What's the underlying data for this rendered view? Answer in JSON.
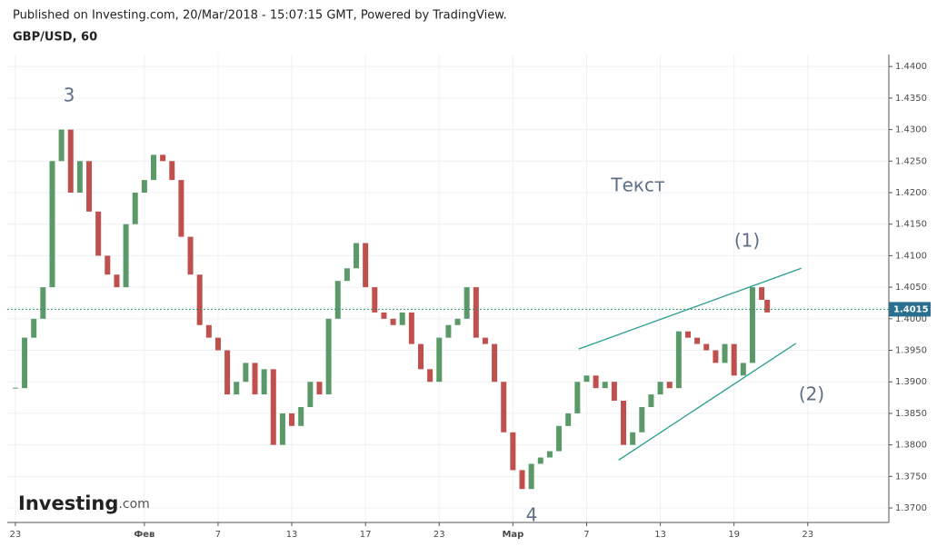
{
  "header": {
    "published": "Published on Investing.com, 20/Mar/2018 - 15:07:15 GMT, Powered by TradingView.",
    "symbol": "GBP/USD, 60"
  },
  "logo": {
    "name": "Investing",
    "suffix": ".com"
  },
  "chart_data": {
    "type": "candlestick",
    "up_color": "#5b9a68",
    "down_color": "#c0504d",
    "x": [
      0,
      0.5,
      1,
      1.5,
      2,
      2.5,
      3,
      3.5,
      4,
      4.5,
      5,
      5.5,
      6,
      6.5,
      7,
      7.5,
      8,
      8.5,
      9,
      9.5,
      10,
      10.5,
      11,
      11.5,
      12,
      12.5,
      13,
      13.5,
      14,
      14.5,
      15,
      15.5,
      16,
      16.5,
      17,
      17.5,
      18,
      18.5,
      19,
      19.5,
      20,
      20.5,
      21,
      21.5,
      22,
      22.5,
      23,
      23.5,
      24,
      24.5,
      25,
      25.5,
      26,
      26.5,
      27,
      27.5,
      28,
      28.5,
      29,
      29.5,
      30,
      30.5,
      31,
      31.5,
      32,
      32.5,
      33,
      33.5,
      34,
      34.5,
      35,
      35.5,
      36,
      36.5,
      37,
      37.5,
      38,
      38.5,
      39,
      39.5,
      40,
      40.5,
      40.8
    ],
    "values": [
      1.389,
      1.397,
      1.4,
      1.405,
      1.425,
      1.43,
      1.42,
      1.425,
      1.417,
      1.41,
      1.407,
      1.405,
      1.415,
      1.42,
      1.422,
      1.426,
      1.425,
      1.422,
      1.413,
      1.407,
      1.399,
      1.397,
      1.395,
      1.388,
      1.39,
      1.393,
      1.388,
      1.392,
      1.38,
      1.385,
      1.383,
      1.386,
      1.39,
      1.388,
      1.4,
      1.406,
      1.408,
      1.412,
      1.405,
      1.401,
      1.4,
      1.399,
      1.401,
      1.396,
      1.392,
      1.39,
      1.397,
      1.399,
      1.4,
      1.405,
      1.397,
      1.396,
      1.39,
      1.382,
      1.376,
      1.373,
      1.377,
      1.378,
      1.379,
      1.383,
      1.385,
      1.39,
      1.391,
      1.389,
      1.39,
      1.387,
      1.38,
      1.382,
      1.386,
      1.388,
      1.39,
      1.389,
      1.398,
      1.397,
      1.396,
      1.395,
      1.393,
      1.396,
      1.391,
      1.393,
      1.405,
      1.403,
      1.401
    ],
    "last_price": {
      "value": 1.4015,
      "label": "1.4015"
    },
    "trendlines": [
      {
        "x": [
          30.57,
          42.65
        ],
        "y": [
          1.3952,
          1.408
        ],
        "color": "#2a9d8f"
      },
      {
        "x": [
          32.74,
          42.36
        ],
        "y": [
          1.3776,
          1.3961
        ],
        "color": "#2a9d8f"
      }
    ],
    "annotations": [
      "3",
      "4",
      "(1)",
      "(2)",
      "Текст"
    ],
    "xlim": [
      -0.44,
      47.4
    ],
    "xticks": [
      {
        "value": 0,
        "label": "23"
      },
      {
        "value": 7,
        "label": "Фев"
      },
      {
        "value": 11,
        "label": "7"
      },
      {
        "value": 15,
        "label": "13"
      },
      {
        "value": 19,
        "label": "17"
      },
      {
        "value": 23,
        "label": "23"
      },
      {
        "value": 27,
        "label": "Мар"
      },
      {
        "value": 31,
        "label": "7"
      },
      {
        "value": 35,
        "label": "13"
      },
      {
        "value": 39,
        "label": "19"
      },
      {
        "value": 43,
        "label": "23"
      }
    ],
    "ylim": [
      1.3677,
      1.4419
    ],
    "yticks": [
      {
        "value": 1.37,
        "label": "1.3700"
      },
      {
        "value": 1.375,
        "label": "1.3750"
      },
      {
        "value": 1.38,
        "label": "1.3800"
      },
      {
        "value": 1.385,
        "label": "1.3850"
      },
      {
        "value": 1.39,
        "label": "1.3900"
      },
      {
        "value": 1.395,
        "label": "1.3950"
      },
      {
        "value": 1.4,
        "label": "1.4000"
      },
      {
        "value": 1.405,
        "label": "1.4050"
      },
      {
        "value": 1.41,
        "label": "1.4100"
      },
      {
        "value": 1.415,
        "label": "1.4150"
      },
      {
        "value": 1.42,
        "label": "1.4200"
      },
      {
        "value": 1.425,
        "label": "1.4250"
      },
      {
        "value": 1.43,
        "label": "1.4300"
      },
      {
        "value": 1.435,
        "label": "1.4350"
      },
      {
        "value": 1.44,
        "label": "1.4400"
      }
    ],
    "grid": true
  }
}
